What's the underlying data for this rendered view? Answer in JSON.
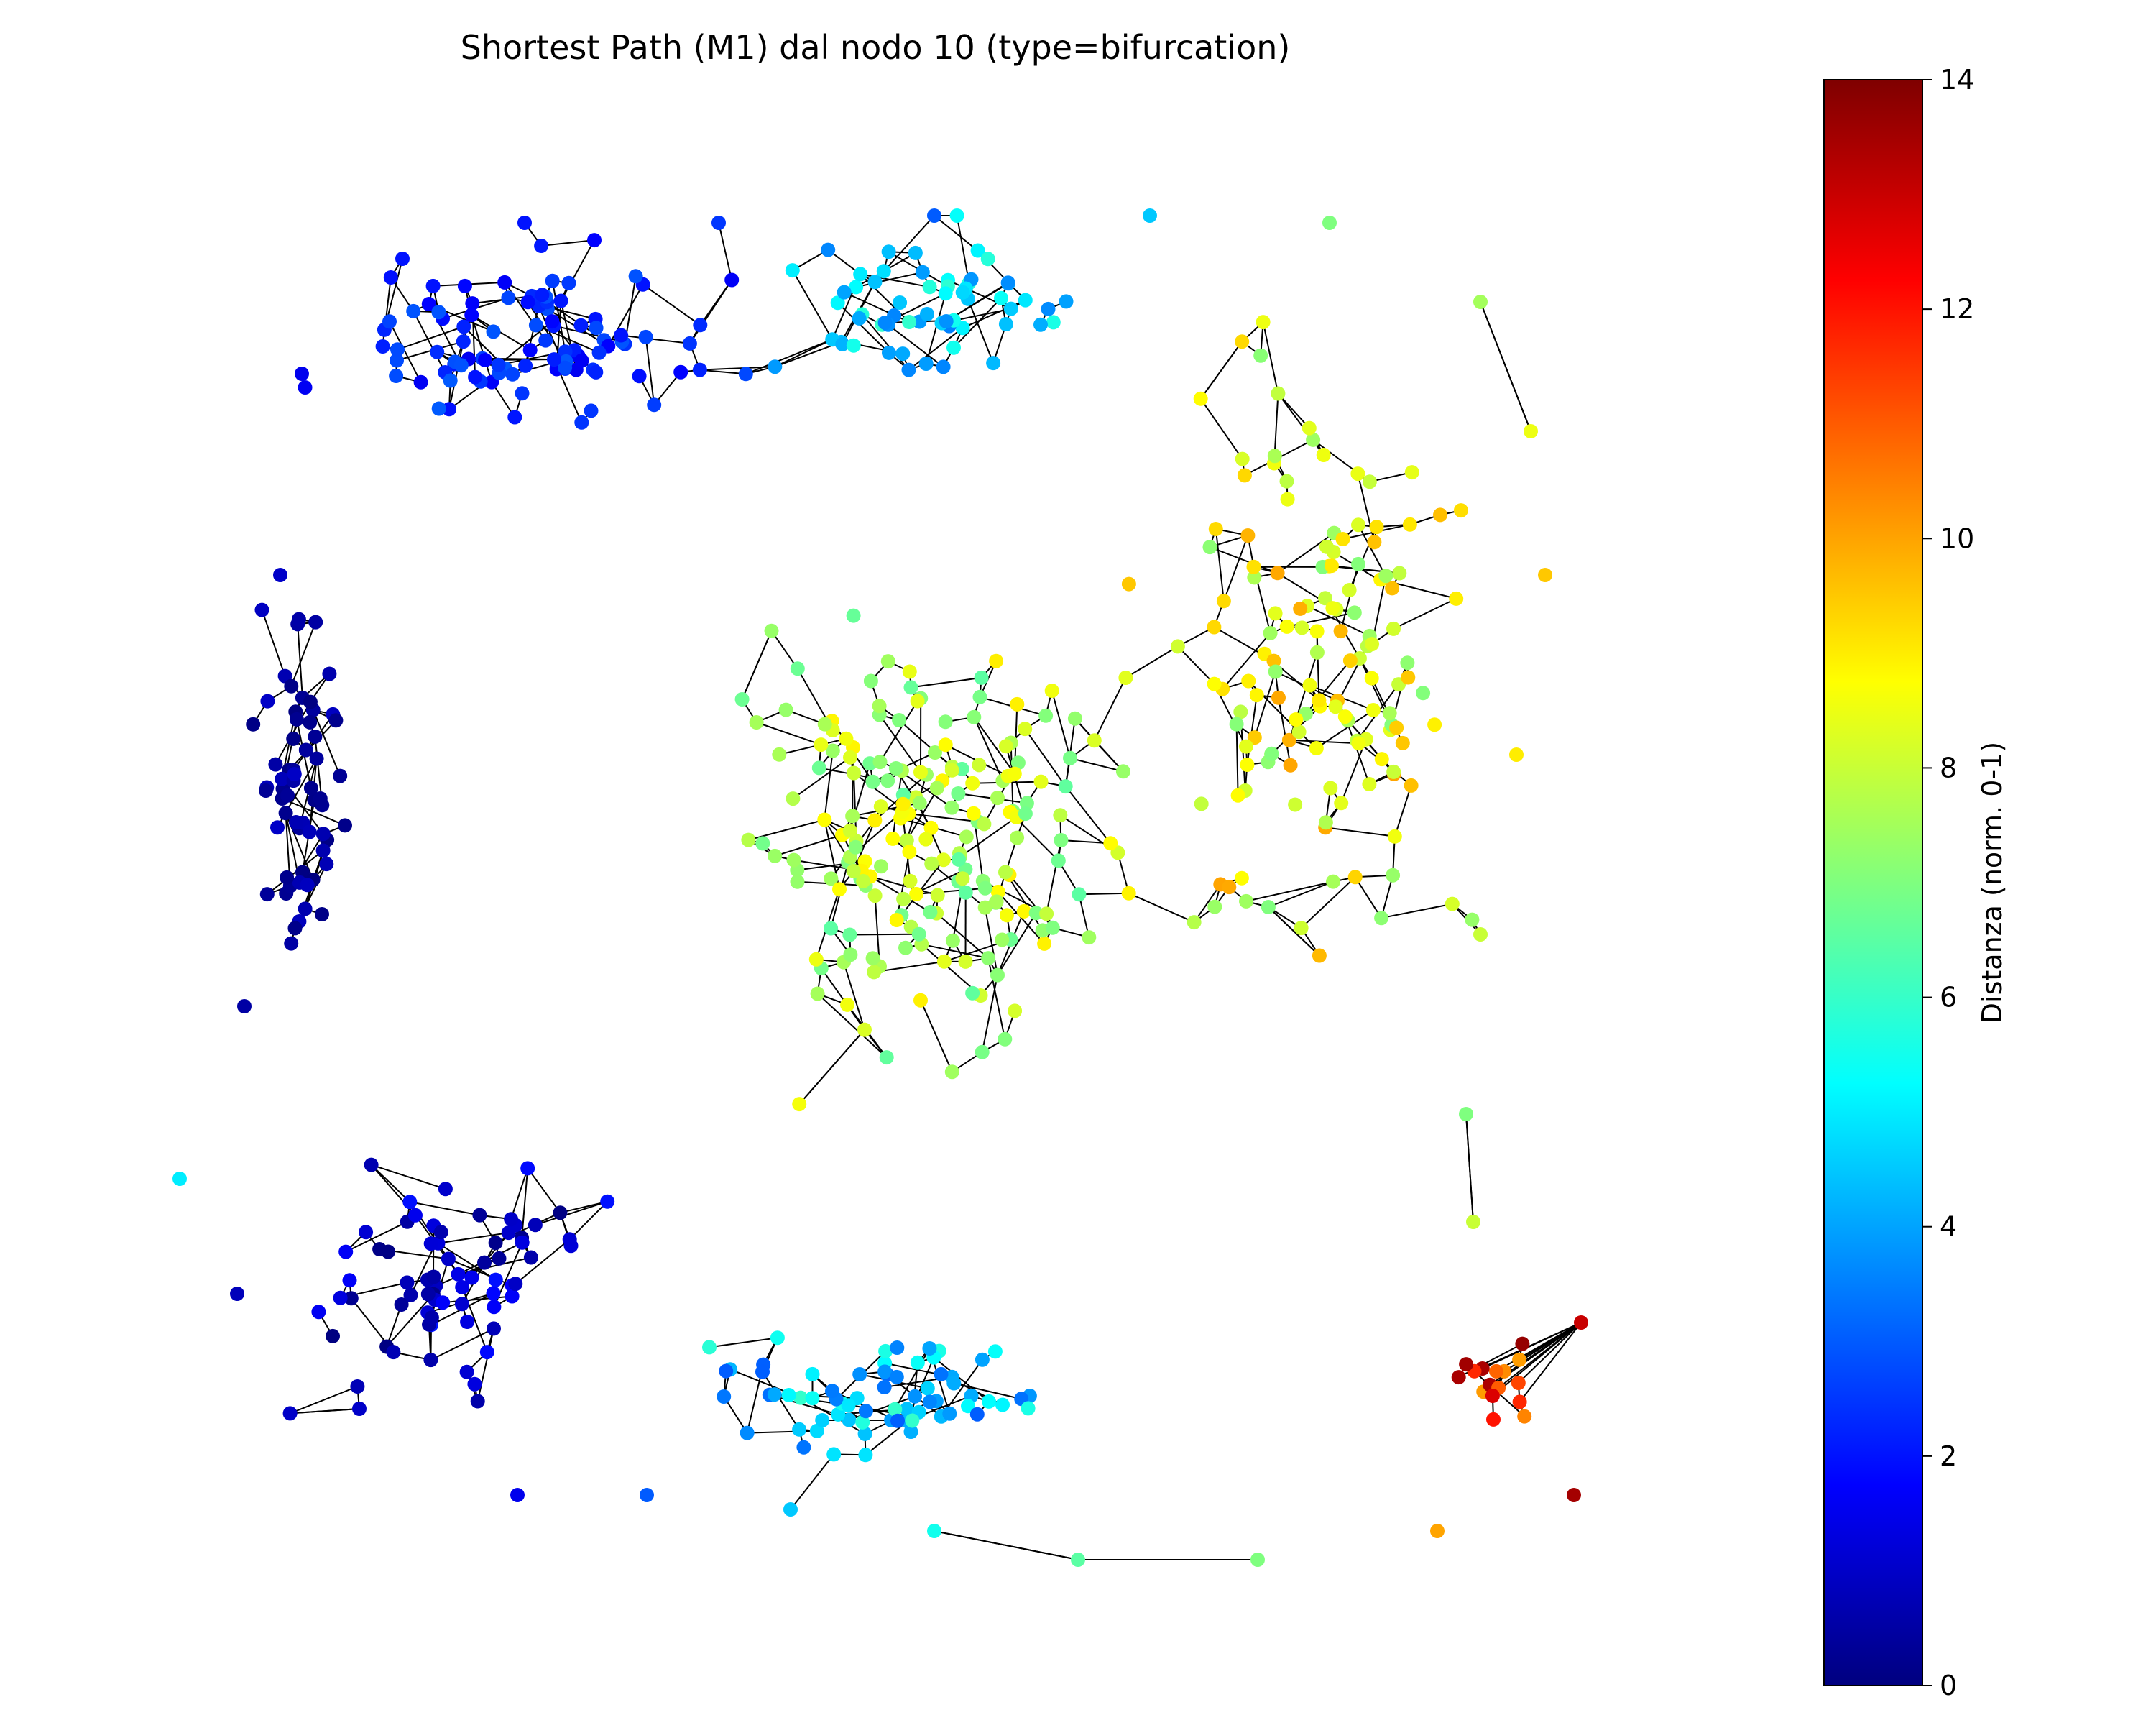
{
  "chart_data": {
    "type": "scatter",
    "subtype": "network-graph",
    "title": "Shortest Path (M1) dal nodo 10 (type=bifurcation)",
    "xlabel": "",
    "ylabel": "",
    "axes_visible": false,
    "grid": false,
    "colormap": "jet",
    "colormap_stops": [
      "#00007f",
      "#0000ff",
      "#007fff",
      "#00ffff",
      "#7fff7f",
      "#ffff00",
      "#ff7f00",
      "#ff0000",
      "#7f0000"
    ],
    "edge_color": "#000000",
    "colorbar": {
      "label": "Distanza (norm. 0-1)",
      "vmin": 0,
      "vmax": 14,
      "ticks": [
        0,
        2,
        4,
        6,
        8,
        10,
        12,
        14
      ],
      "tick_labels": [
        "0",
        "2",
        "4",
        "6",
        "8",
        "10",
        "12",
        "14"
      ],
      "position": "right"
    },
    "node_value_groups": [
      {
        "region": "left-edge",
        "value_range": [
          0,
          1
        ]
      },
      {
        "region": "top-left",
        "value_range": [
          1.5,
          3
        ]
      },
      {
        "region": "bottom-left",
        "value_range": [
          0,
          2
        ]
      },
      {
        "region": "top-middle",
        "value_range": [
          3.5,
          6
        ]
      },
      {
        "region": "bottom-middle",
        "value_range": [
          3,
          6
        ]
      },
      {
        "region": "center",
        "value_range": [
          6.5,
          9
        ]
      },
      {
        "region": "right",
        "value_range": [
          7,
          10
        ]
      },
      {
        "region": "bottom-right",
        "value_range": [
          10,
          14
        ]
      }
    ]
  }
}
